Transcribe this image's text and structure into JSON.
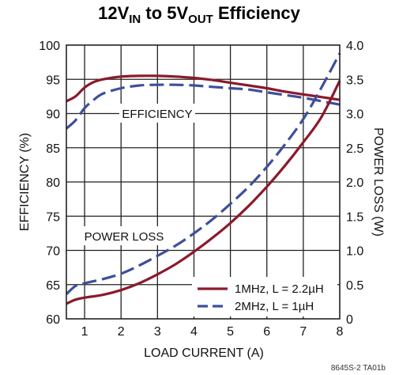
{
  "chart_data": {
    "type": "line",
    "title": {
      "pre": "12V",
      "sub1": "IN",
      "mid": " to 5V",
      "sub2": "OUT",
      "post": " Efficiency"
    },
    "xlabel": "LOAD CURRENT (A)",
    "ylabel_left": "EFFICIENCY (%)",
    "ylabel_right": "POWER LOSS (W)",
    "xlim": [
      0.5,
      8
    ],
    "ylim_left": [
      60,
      100
    ],
    "ylim_right": [
      0,
      4
    ],
    "x_ticks": [
      "1",
      "2",
      "3",
      "4",
      "5",
      "6",
      "7",
      "8"
    ],
    "y_ticks_left": [
      "60",
      "65",
      "70",
      "75",
      "80",
      "85",
      "90",
      "95",
      "100"
    ],
    "y_ticks_right": [
      "0",
      "0.5",
      "1.0",
      "1.5",
      "2.0",
      "2.5",
      "3.0",
      "3.5",
      "4.0"
    ],
    "grid": true,
    "annotations": {
      "efficiency": "EFFICIENCY",
      "power_loss": "POWER LOSS"
    },
    "legend": {
      "position": "bottom-right",
      "entries": [
        {
          "label": "1MHz, L = 2.2µH",
          "color": "#8b1a2b",
          "dash": "solid"
        },
        {
          "label": "2MHz, L = 1µH",
          "color": "#3d4f9c",
          "dash": "dashed"
        }
      ]
    },
    "series": [
      {
        "name": "1MHz, L = 2.2µH",
        "axis": "left",
        "kind": "efficiency",
        "color": "#8b1a2b",
        "dash": "solid",
        "x": [
          0.5,
          0.75,
          1.0,
          1.25,
          1.5,
          2.0,
          2.5,
          3.0,
          3.5,
          4.0,
          4.5,
          5.0,
          5.5,
          6.0,
          6.5,
          7.0,
          7.5,
          8.0
        ],
        "y": [
          91.8,
          92.5,
          93.8,
          94.6,
          95.0,
          95.4,
          95.5,
          95.5,
          95.4,
          95.2,
          94.9,
          94.5,
          94.1,
          93.7,
          93.2,
          92.8,
          92.4,
          92.0
        ]
      },
      {
        "name": "2MHz, L = 1µH",
        "axis": "left",
        "kind": "efficiency",
        "color": "#3d4f9c",
        "dash": "dashed",
        "x": [
          0.5,
          0.75,
          1.0,
          1.25,
          1.5,
          2.0,
          2.5,
          3.0,
          3.5,
          4.0,
          4.5,
          5.0,
          5.5,
          6.0,
          6.5,
          7.0,
          7.5,
          8.0
        ],
        "y": [
          87.8,
          89.0,
          90.8,
          92.0,
          92.9,
          93.7,
          94.1,
          94.2,
          94.2,
          94.1,
          93.9,
          93.7,
          93.5,
          93.1,
          92.7,
          92.3,
          91.8,
          91.3
        ]
      },
      {
        "name": "1MHz, L = 2.2µH",
        "axis": "right",
        "kind": "power_loss",
        "color": "#8b1a2b",
        "dash": "solid",
        "x": [
          0.5,
          0.75,
          1.0,
          1.5,
          2.0,
          2.5,
          3.0,
          3.5,
          4.0,
          4.5,
          5.0,
          5.5,
          6.0,
          6.5,
          7.0,
          7.5,
          8.0
        ],
        "y": [
          0.22,
          0.28,
          0.31,
          0.35,
          0.42,
          0.52,
          0.65,
          0.8,
          0.98,
          1.18,
          1.4,
          1.65,
          1.93,
          2.24,
          2.58,
          2.95,
          3.48
        ]
      },
      {
        "name": "2MHz, L = 1µH",
        "axis": "right",
        "kind": "power_loss",
        "color": "#3d4f9c",
        "dash": "dashed",
        "x": [
          0.5,
          0.75,
          1.0,
          1.5,
          2.0,
          2.5,
          3.0,
          3.5,
          4.0,
          4.5,
          5.0,
          5.5,
          6.0,
          6.5,
          7.0,
          7.5,
          8.0
        ],
        "y": [
          0.36,
          0.48,
          0.52,
          0.58,
          0.66,
          0.78,
          0.92,
          1.07,
          1.25,
          1.45,
          1.68,
          1.93,
          2.22,
          2.55,
          2.92,
          3.38,
          3.88
        ]
      }
    ],
    "figure_code": "8645S-2 TA01b"
  }
}
